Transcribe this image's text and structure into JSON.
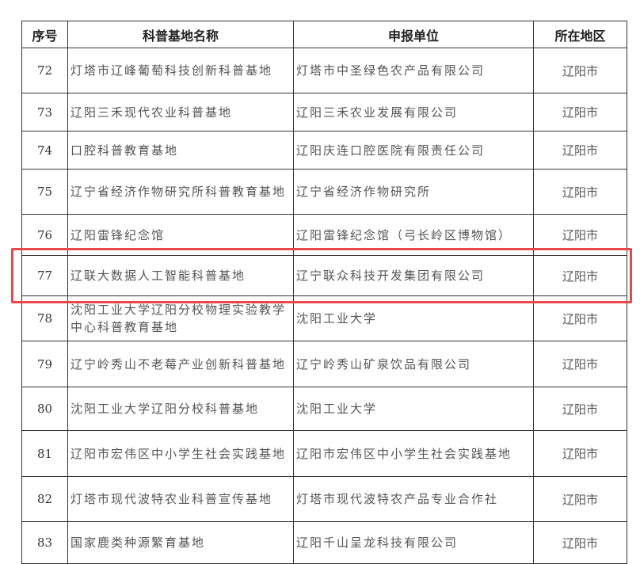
{
  "headers": [
    "序号",
    "科普基地名称",
    "申报单位",
    "所在地区"
  ],
  "rows": [
    {
      "no": "72",
      "name": "灯塔市辽峰葡萄科技创新科普基地",
      "unit": "灯塔市中圣绿色农产品有限公司",
      "region": "辽阳市"
    },
    {
      "no": "73",
      "name": "辽阳三禾现代农业科普基地",
      "unit": "辽阳三禾农业发展有限公司",
      "region": "辽阳市"
    },
    {
      "no": "74",
      "name": "口腔科普教育基地",
      "unit": "辽阳庆连口腔医院有限责任公司",
      "region": "辽阳市"
    },
    {
      "no": "75",
      "name": "辽宁省经济作物研究所科普教育基地",
      "unit": "辽宁省经济作物研究所",
      "region": "辽阳市"
    },
    {
      "no": "76",
      "name": "辽阳雷锋纪念馆",
      "unit": "辽阳雷锋纪念馆（弓长岭区博物馆）",
      "region": "辽阳市"
    },
    {
      "no": "77",
      "name": "辽联大数据人工智能科普基地",
      "unit": "辽宁联众科技开发集团有限公司",
      "region": "辽阳市"
    },
    {
      "no": "78",
      "name": "沈阳工业大学辽阳分校物理实验教学中心科普教育基地",
      "unit": "沈阳工业大学",
      "region": "辽阳市"
    },
    {
      "no": "79",
      "name": "辽宁岭秀山不老莓产业创新科普基地",
      "unit": "辽宁岭秀山矿泉饮品有限公司",
      "region": "辽阳市"
    },
    {
      "no": "80",
      "name": "沈阳工业大学辽阳分校科普基地",
      "unit": "沈阳工业大学",
      "region": "辽阳市"
    },
    {
      "no": "81",
      "name": "辽阳市宏伟区中小学生社会实践基地",
      "unit": "辽阳市宏伟区中小学生社会实践基地",
      "region": "辽阳市"
    },
    {
      "no": "82",
      "name": "灯塔市现代波特农业科普宣传基地",
      "unit": "灯塔市现代波特农产品专业合作社",
      "region": "辽阳市"
    },
    {
      "no": "83",
      "name": "国家鹿类种源繁育基地",
      "unit": "辽阳千山呈龙科技有限公司",
      "region": "辽阳市"
    }
  ],
  "highlighted_row": "77",
  "highlight_color": "#e8484b"
}
